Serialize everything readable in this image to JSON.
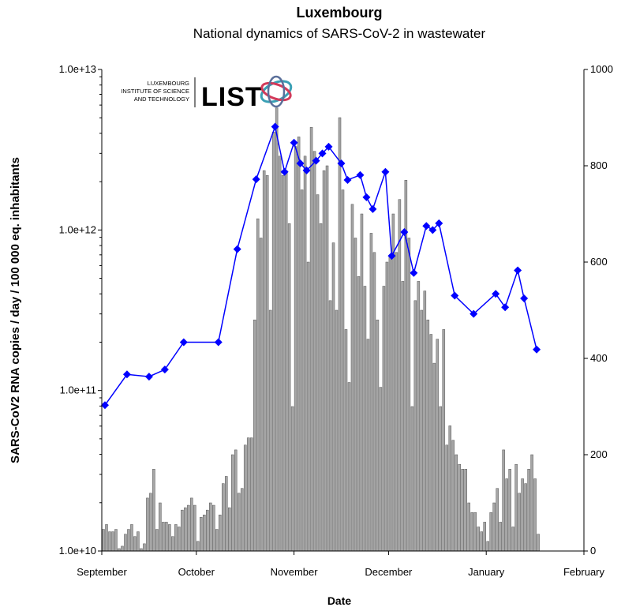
{
  "logo": {
    "lines": [
      "LUXEMBOURG",
      "INSTITUTE OF SCIENCE",
      "AND TECHNOLOGY"
    ],
    "mark": "LIST"
  },
  "chart_data": {
    "type": "bar-line",
    "title": "Luxembourg",
    "subtitle": "National dynamics of SARS-CoV-2 in wastewater",
    "xlabel": "Date",
    "ylabel": "SARS-CoV2 RNA copies / day  / 100 000 eq. inhabitants",
    "xlim": [
      0,
      153
    ],
    "xticks": [
      {
        "value": 0,
        "label": "September"
      },
      {
        "value": 30,
        "label": "October"
      },
      {
        "value": 61,
        "label": "November"
      },
      {
        "value": 91,
        "label": "December"
      },
      {
        "value": 122,
        "label": "January"
      },
      {
        "value": 153,
        "label": "February"
      }
    ],
    "ylim": [
      10000000000,
      10000000000000
    ],
    "ylog": true,
    "yticks": [
      {
        "value": 10000000000,
        "label": "1.0e+10"
      },
      {
        "value": 100000000000,
        "label": "1.0e+11"
      },
      {
        "value": 1000000000000,
        "label": "1.0e+12"
      },
      {
        "value": 10000000000000,
        "label": "1.0e+13"
      }
    ],
    "y2lim": [
      0,
      1000
    ],
    "y2ticks": [
      0,
      200,
      400,
      600,
      800,
      1000
    ],
    "series": [
      {
        "type": "bar",
        "axis": "y2",
        "color": "#a6a6a6",
        "x": [
          0,
          1,
          2,
          3,
          4,
          5,
          6,
          7,
          8,
          9,
          10,
          11,
          12,
          13,
          14,
          15,
          16,
          17,
          18,
          19,
          20,
          21,
          22,
          23,
          24,
          25,
          26,
          27,
          28,
          29,
          30,
          31,
          32,
          33,
          34,
          35,
          36,
          37,
          38,
          39,
          40,
          41,
          42,
          43,
          44,
          45,
          46,
          47,
          48,
          49,
          50,
          51,
          52,
          53,
          54,
          55,
          56,
          57,
          58,
          59,
          60,
          61,
          62,
          63,
          64,
          65,
          66,
          67,
          68,
          69,
          70,
          71,
          72,
          73,
          74,
          75,
          76,
          77,
          78,
          79,
          80,
          81,
          82,
          83,
          84,
          85,
          86,
          87,
          88,
          89,
          90,
          91,
          92,
          93,
          94,
          95,
          96,
          97,
          98,
          99,
          100,
          101,
          102,
          103,
          104,
          105,
          106,
          107,
          108,
          109,
          110,
          111,
          112,
          113,
          114,
          115,
          116,
          117,
          118,
          119,
          120,
          121,
          122,
          123,
          124,
          125,
          126,
          127,
          128,
          129,
          130,
          131,
          132,
          133,
          134,
          135,
          136,
          137,
          138
        ],
        "values": [
          45,
          55,
          40,
          40,
          45,
          5,
          10,
          35,
          45,
          55,
          30,
          40,
          5,
          15,
          110,
          120,
          170,
          45,
          100,
          60,
          60,
          55,
          30,
          55,
          50,
          85,
          90,
          95,
          110,
          95,
          20,
          70,
          75,
          85,
          100,
          95,
          45,
          75,
          140,
          155,
          90,
          200,
          210,
          120,
          130,
          220,
          235,
          235,
          480,
          690,
          650,
          790,
          780,
          500,
          870,
          920,
          820,
          780,
          790,
          680,
          300,
          840,
          860,
          750,
          820,
          600,
          880,
          830,
          740,
          680,
          790,
          800,
          520,
          640,
          500,
          900,
          750,
          460,
          350,
          720,
          650,
          570,
          700,
          550,
          440,
          660,
          620,
          480,
          340,
          550,
          600,
          610,
          700,
          620,
          730,
          560,
          770,
          650,
          300,
          520,
          560,
          500,
          540,
          480,
          450,
          390,
          440,
          300,
          460,
          220,
          260,
          230,
          200,
          180,
          170,
          170,
          100,
          80,
          80,
          50,
          40,
          60,
          20,
          80,
          100,
          130,
          60,
          210,
          150,
          170,
          50,
          180,
          120,
          150,
          140,
          170,
          200,
          150,
          35
        ]
      },
      {
        "type": "line",
        "color": "#0000ff",
        "x": [
          1,
          8,
          15,
          20,
          26,
          37,
          43,
          49,
          55,
          58,
          61,
          63,
          65,
          68,
          70,
          72,
          76,
          78,
          82,
          84,
          86,
          90,
          92,
          96,
          99,
          103,
          105,
          107,
          112,
          118,
          125,
          128,
          132,
          134,
          138
        ],
        "values": [
          81000000000,
          126000000000,
          122000000000,
          135000000000,
          200000000000,
          200000000000,
          760000000000,
          2070000000000,
          4400000000000,
          2300000000000,
          3500000000000,
          2600000000000,
          2350000000000,
          2700000000000,
          3000000000000,
          3300000000000,
          2600000000000,
          2050000000000,
          2200000000000,
          1600000000000,
          1350000000000,
          2300000000000,
          690000000000,
          970000000000,
          540000000000,
          1060000000000,
          1000000000000,
          1100000000000,
          390000000000,
          300000000000,
          400000000000,
          330000000000,
          560000000000,
          375000000000,
          180000000000
        ]
      }
    ]
  }
}
